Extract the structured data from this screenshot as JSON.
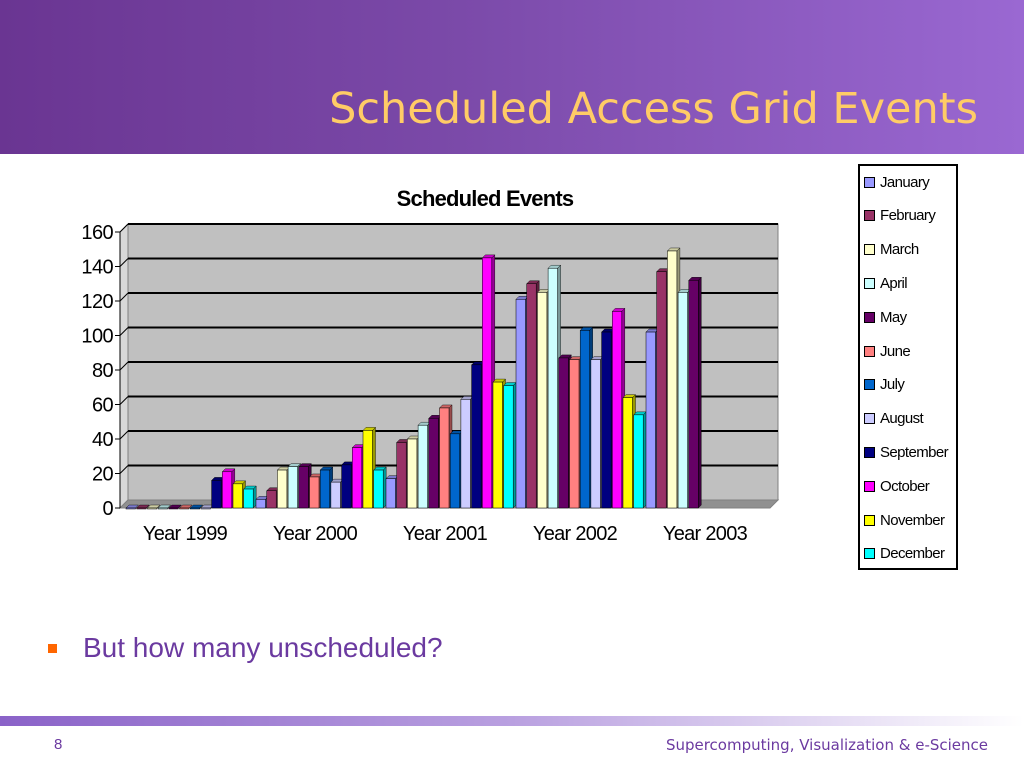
{
  "slide": {
    "title": "Scheduled Access Grid Events",
    "bullet": "But how many unscheduled?",
    "page_number": "8",
    "footer": "Supercomputing, Visualization & e-Science"
  },
  "colors": {
    "header_start": "#6a3592",
    "header_end": "#9a68d2",
    "title": "#ffcc66",
    "bullet_text": "#6b3aa0",
    "bullet_marker": "#ff6600",
    "plot_background": "#c0c0c0"
  },
  "chart_data": {
    "type": "bar",
    "title": "Scheduled Events",
    "xlabel": "",
    "ylabel": "",
    "ylim": [
      0,
      160
    ],
    "yticks": [
      0,
      20,
      40,
      60,
      80,
      100,
      120,
      140,
      160
    ],
    "grid": true,
    "legend_position": "right",
    "categories": [
      "Year 1999",
      "Year 2000",
      "Year 2001",
      "Year 2002",
      "Year 2003"
    ],
    "series": [
      {
        "name": "January",
        "color": "#9999ff",
        "values": [
          0,
          5,
          17,
          121,
          102
        ]
      },
      {
        "name": "February",
        "color": "#993366",
        "values": [
          0,
          10,
          38,
          130,
          137
        ]
      },
      {
        "name": "March",
        "color": "#ffffcc",
        "values": [
          0,
          22,
          40,
          125,
          149
        ]
      },
      {
        "name": "April",
        "color": "#ccffff",
        "values": [
          0,
          24,
          48,
          139,
          125
        ]
      },
      {
        "name": "May",
        "color": "#660066",
        "values": [
          0,
          24,
          52,
          87,
          132
        ]
      },
      {
        "name": "June",
        "color": "#ff8080",
        "values": [
          0,
          18,
          58,
          86,
          null
        ]
      },
      {
        "name": "July",
        "color": "#0066cc",
        "values": [
          0,
          22,
          43,
          103,
          null
        ]
      },
      {
        "name": "August",
        "color": "#ccccff",
        "values": [
          0,
          15,
          63,
          86,
          null
        ]
      },
      {
        "name": "September",
        "color": "#000080",
        "values": [
          16,
          25,
          83,
          102,
          null
        ]
      },
      {
        "name": "October",
        "color": "#ff00ff",
        "values": [
          21,
          35,
          145,
          114,
          null
        ]
      },
      {
        "name": "November",
        "color": "#ffff00",
        "values": [
          14,
          45,
          73,
          64,
          null
        ]
      },
      {
        "name": "December",
        "color": "#00ffff",
        "values": [
          11,
          22,
          71,
          54,
          null
        ]
      }
    ]
  }
}
